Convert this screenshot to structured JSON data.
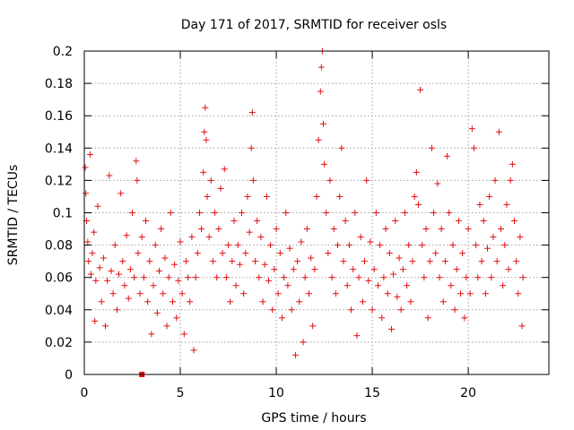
{
  "chart_data": {
    "type": "scatter",
    "title": "Day 171 of 2017, SRMTID for receiver osls",
    "xlabel": "GPS time / hours",
    "ylabel": "SRMTID / TECUs",
    "xlim": [
      0,
      24.2
    ],
    "ylim": [
      0,
      0.2
    ],
    "x_ticks": [
      0,
      5,
      10,
      15,
      20
    ],
    "x_tick_labels": [
      "0",
      "5",
      "10",
      "15",
      "20"
    ],
    "y_ticks": [
      0,
      0.02,
      0.04,
      0.06,
      0.08,
      0.1,
      0.12,
      0.14,
      0.16,
      0.18,
      0.2
    ],
    "y_tick_labels": [
      "0",
      "0.02",
      "0.04",
      "0.06",
      "0.08",
      "0.1",
      "0.12",
      "0.14",
      "0.16",
      "0.18",
      "0.2"
    ],
    "grid": true,
    "marker": "+",
    "color": "#e01010",
    "gap_marker": {
      "x": 3.0,
      "y": 0.0
    },
    "series": [
      {
        "values": [
          [
            0.05,
            0.128
          ],
          [
            0.08,
            0.112
          ],
          [
            0.12,
            0.095
          ],
          [
            0.18,
            0.082
          ],
          [
            0.22,
            0.07
          ],
          [
            0.3,
            0.136
          ],
          [
            0.35,
            0.062
          ],
          [
            0.42,
            0.075
          ],
          [
            0.5,
            0.088
          ],
          [
            0.55,
            0.033
          ],
          [
            0.6,
            0.058
          ],
          [
            0.7,
            0.104
          ],
          [
            0.8,
            0.066
          ],
          [
            0.9,
            0.045
          ],
          [
            1.0,
            0.072
          ],
          [
            1.1,
            0.03
          ],
          [
            1.2,
            0.058
          ],
          [
            1.3,
            0.123
          ],
          [
            1.4,
            0.064
          ],
          [
            1.5,
            0.05
          ],
          [
            1.6,
            0.08
          ],
          [
            1.7,
            0.04
          ],
          [
            1.8,
            0.062
          ],
          [
            1.9,
            0.112
          ],
          [
            2.0,
            0.07
          ],
          [
            2.1,
            0.055
          ],
          [
            2.2,
            0.086
          ],
          [
            2.3,
            0.047
          ],
          [
            2.4,
            0.065
          ],
          [
            2.5,
            0.1
          ],
          [
            2.6,
            0.06
          ],
          [
            2.7,
            0.132
          ],
          [
            2.75,
            0.12
          ],
          [
            2.8,
            0.075
          ],
          [
            2.9,
            0.05
          ],
          [
            3.0,
            0.085
          ],
          [
            3.1,
            0.06
          ],
          [
            3.2,
            0.095
          ],
          [
            3.3,
            0.045
          ],
          [
            3.4,
            0.07
          ],
          [
            3.5,
            0.025
          ],
          [
            3.6,
            0.055
          ],
          [
            3.7,
            0.08
          ],
          [
            3.8,
            0.038
          ],
          [
            3.9,
            0.064
          ],
          [
            4.0,
            0.09
          ],
          [
            4.1,
            0.05
          ],
          [
            4.2,
            0.072
          ],
          [
            4.3,
            0.03
          ],
          [
            4.4,
            0.06
          ],
          [
            4.5,
            0.1
          ],
          [
            4.6,
            0.045
          ],
          [
            4.7,
            0.068
          ],
          [
            4.8,
            0.035
          ],
          [
            4.9,
            0.058
          ],
          [
            5.0,
            0.082
          ],
          [
            5.1,
            0.05
          ],
          [
            5.2,
            0.025
          ],
          [
            5.3,
            0.07
          ],
          [
            5.4,
            0.06
          ],
          [
            5.5,
            0.045
          ],
          [
            5.6,
            0.085
          ],
          [
            5.7,
            0.015
          ],
          [
            5.8,
            0.06
          ],
          [
            5.9,
            0.075
          ],
          [
            6.0,
            0.1
          ],
          [
            6.1,
            0.09
          ],
          [
            6.2,
            0.125
          ],
          [
            6.25,
            0.15
          ],
          [
            6.3,
            0.165
          ],
          [
            6.35,
            0.145
          ],
          [
            6.4,
            0.11
          ],
          [
            6.5,
            0.085
          ],
          [
            6.6,
            0.12
          ],
          [
            6.7,
            0.07
          ],
          [
            6.8,
            0.1
          ],
          [
            6.9,
            0.06
          ],
          [
            7.0,
            0.09
          ],
          [
            7.1,
            0.115
          ],
          [
            7.2,
            0.075
          ],
          [
            7.3,
            0.127
          ],
          [
            7.4,
            0.06
          ],
          [
            7.5,
            0.08
          ],
          [
            7.6,
            0.045
          ],
          [
            7.7,
            0.07
          ],
          [
            7.8,
            0.095
          ],
          [
            7.9,
            0.055
          ],
          [
            8.0,
            0.08
          ],
          [
            8.1,
            0.068
          ],
          [
            8.2,
            0.1
          ],
          [
            8.3,
            0.05
          ],
          [
            8.4,
            0.075
          ],
          [
            8.5,
            0.11
          ],
          [
            8.6,
            0.088
          ],
          [
            8.7,
            0.14
          ],
          [
            8.75,
            0.162
          ],
          [
            8.8,
            0.12
          ],
          [
            8.9,
            0.07
          ],
          [
            9.0,
            0.095
          ],
          [
            9.1,
            0.06
          ],
          [
            9.2,
            0.085
          ],
          [
            9.3,
            0.045
          ],
          [
            9.4,
            0.068
          ],
          [
            9.5,
            0.11
          ],
          [
            9.6,
            0.058
          ],
          [
            9.7,
            0.08
          ],
          [
            9.8,
            0.04
          ],
          [
            9.9,
            0.065
          ],
          [
            10.0,
            0.09
          ],
          [
            10.1,
            0.05
          ],
          [
            10.2,
            0.075
          ],
          [
            10.3,
            0.035
          ],
          [
            10.4,
            0.06
          ],
          [
            10.5,
            0.1
          ],
          [
            10.6,
            0.055
          ],
          [
            10.7,
            0.078
          ],
          [
            10.8,
            0.04
          ],
          [
            10.9,
            0.065
          ],
          [
            11.0,
            0.012
          ],
          [
            11.1,
            0.07
          ],
          [
            11.2,
            0.045
          ],
          [
            11.3,
            0.082
          ],
          [
            11.4,
            0.02
          ],
          [
            11.5,
            0.06
          ],
          [
            11.6,
            0.09
          ],
          [
            11.7,
            0.05
          ],
          [
            11.8,
            0.072
          ],
          [
            11.9,
            0.03
          ],
          [
            12.0,
            0.065
          ],
          [
            12.1,
            0.11
          ],
          [
            12.2,
            0.145
          ],
          [
            12.3,
            0.175
          ],
          [
            12.35,
            0.19
          ],
          [
            12.4,
            0.2
          ],
          [
            12.45,
            0.155
          ],
          [
            12.5,
            0.13
          ],
          [
            12.6,
            0.1
          ],
          [
            12.7,
            0.075
          ],
          [
            12.8,
            0.12
          ],
          [
            12.9,
            0.06
          ],
          [
            13.0,
            0.09
          ],
          [
            13.1,
            0.05
          ],
          [
            13.2,
            0.08
          ],
          [
            13.3,
            0.11
          ],
          [
            13.4,
            0.14
          ],
          [
            13.5,
            0.07
          ],
          [
            13.6,
            0.095
          ],
          [
            13.7,
            0.055
          ],
          [
            13.8,
            0.08
          ],
          [
            13.9,
            0.04
          ],
          [
            14.0,
            0.065
          ],
          [
            14.1,
            0.1
          ],
          [
            14.2,
            0.024
          ],
          [
            14.3,
            0.06
          ],
          [
            14.4,
            0.085
          ],
          [
            14.5,
            0.045
          ],
          [
            14.6,
            0.07
          ],
          [
            14.7,
            0.12
          ],
          [
            14.8,
            0.058
          ],
          [
            14.9,
            0.082
          ],
          [
            15.0,
            0.04
          ],
          [
            15.1,
            0.065
          ],
          [
            15.2,
            0.1
          ],
          [
            15.3,
            0.055
          ],
          [
            15.4,
            0.08
          ],
          [
            15.5,
            0.035
          ],
          [
            15.6,
            0.06
          ],
          [
            15.7,
            0.09
          ],
          [
            15.8,
            0.05
          ],
          [
            15.9,
            0.075
          ],
          [
            16.0,
            0.028
          ],
          [
            16.1,
            0.062
          ],
          [
            16.2,
            0.095
          ],
          [
            16.3,
            0.048
          ],
          [
            16.4,
            0.072
          ],
          [
            16.5,
            0.04
          ],
          [
            16.6,
            0.065
          ],
          [
            16.7,
            0.1
          ],
          [
            16.8,
            0.055
          ],
          [
            16.9,
            0.08
          ],
          [
            17.0,
            0.045
          ],
          [
            17.1,
            0.07
          ],
          [
            17.2,
            0.11
          ],
          [
            17.3,
            0.125
          ],
          [
            17.4,
            0.105
          ],
          [
            17.5,
            0.176
          ],
          [
            17.6,
            0.08
          ],
          [
            17.7,
            0.06
          ],
          [
            17.8,
            0.09
          ],
          [
            17.9,
            0.035
          ],
          [
            18.0,
            0.07
          ],
          [
            18.1,
            0.14
          ],
          [
            18.2,
            0.1
          ],
          [
            18.3,
            0.075
          ],
          [
            18.4,
            0.118
          ],
          [
            18.5,
            0.06
          ],
          [
            18.6,
            0.09
          ],
          [
            18.7,
            0.045
          ],
          [
            18.8,
            0.07
          ],
          [
            18.9,
            0.135
          ],
          [
            19.0,
            0.1
          ],
          [
            19.1,
            0.055
          ],
          [
            19.2,
            0.08
          ],
          [
            19.3,
            0.04
          ],
          [
            19.4,
            0.065
          ],
          [
            19.5,
            0.095
          ],
          [
            19.6,
            0.05
          ],
          [
            19.7,
            0.075
          ],
          [
            19.8,
            0.035
          ],
          [
            19.9,
            0.06
          ],
          [
            20.0,
            0.09
          ],
          [
            20.1,
            0.05
          ],
          [
            20.2,
            0.152
          ],
          [
            20.3,
            0.14
          ],
          [
            20.4,
            0.08
          ],
          [
            20.5,
            0.06
          ],
          [
            20.6,
            0.105
          ],
          [
            20.7,
            0.07
          ],
          [
            20.8,
            0.095
          ],
          [
            20.9,
            0.05
          ],
          [
            21.0,
            0.078
          ],
          [
            21.1,
            0.11
          ],
          [
            21.2,
            0.06
          ],
          [
            21.3,
            0.085
          ],
          [
            21.4,
            0.12
          ],
          [
            21.5,
            0.07
          ],
          [
            21.6,
            0.15
          ],
          [
            21.7,
            0.09
          ],
          [
            21.8,
            0.055
          ],
          [
            21.9,
            0.08
          ],
          [
            22.0,
            0.105
          ],
          [
            22.1,
            0.065
          ],
          [
            22.2,
            0.12
          ],
          [
            22.3,
            0.13
          ],
          [
            22.4,
            0.095
          ],
          [
            22.5,
            0.07
          ],
          [
            22.6,
            0.05
          ],
          [
            22.7,
            0.085
          ],
          [
            22.8,
            0.03
          ],
          [
            22.85,
            0.06
          ]
        ]
      }
    ]
  }
}
